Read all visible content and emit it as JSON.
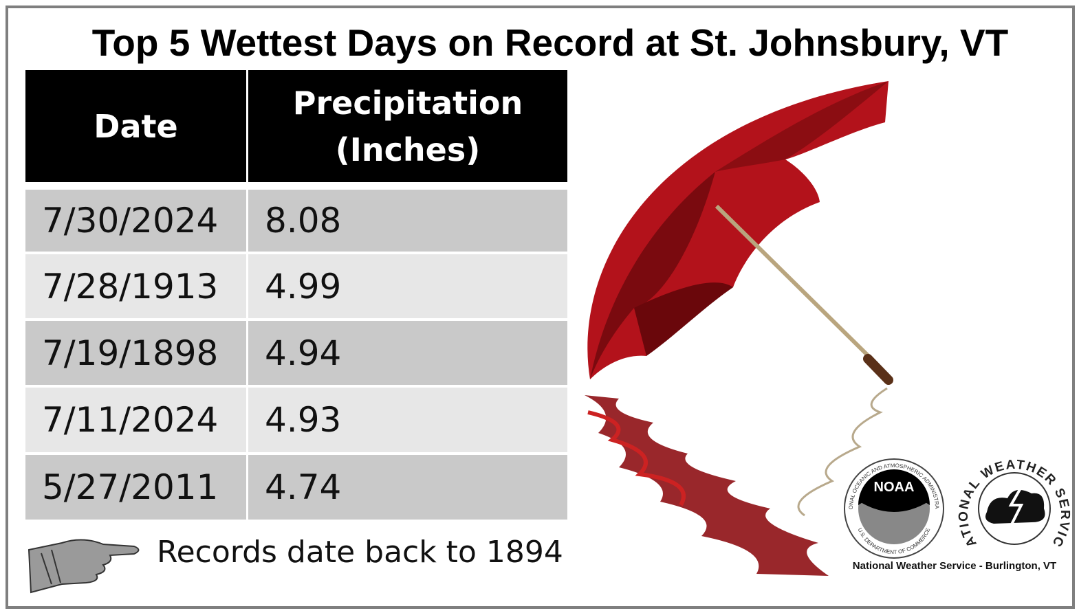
{
  "title": "Top 5 Wettest Days on Record at St. Johnsbury, VT",
  "table": {
    "headers": [
      "Date",
      "Precipitation (Inches)"
    ],
    "rows": [
      [
        "7/30/2024",
        "8.08"
      ],
      [
        "7/28/1913",
        "4.99"
      ],
      [
        "7/19/1898",
        "4.94"
      ],
      [
        "7/11/2024",
        "4.93"
      ],
      [
        "5/27/2011",
        "4.74"
      ]
    ]
  },
  "note": "Records date back to 1894",
  "logos": {
    "noaa": "NOAA",
    "noaa_ring_top": "NATIONAL OCEANIC AND ATMOSPHERIC ADMINISTRATION",
    "noaa_ring_bottom": "U.S. DEPARTMENT OF COMMERCE",
    "nws_ring": "NATIONAL WEATHER SERVICE",
    "credit": "National Weather Service - Burlington, VT"
  }
}
